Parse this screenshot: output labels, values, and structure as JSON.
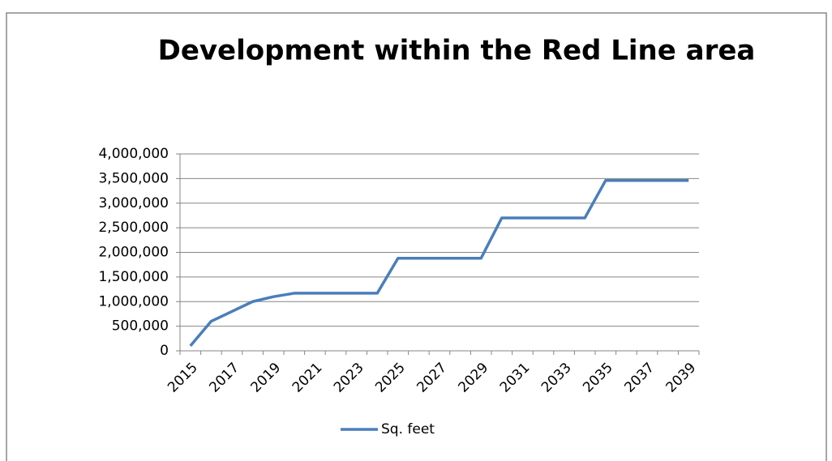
{
  "chart_data": {
    "type": "line",
    "title": "Development within the Red Line area",
    "categories": [
      "2015",
      null,
      "2017",
      null,
      "2019",
      null,
      "2021",
      null,
      "2023",
      null,
      "2025",
      null,
      "2027",
      null,
      "2029",
      null,
      "2031",
      null,
      "2033",
      null,
      "2035",
      null,
      "2037",
      null,
      "2039"
    ],
    "series": [
      {
        "name": "Sq. feet",
        "color": "#4a7ebb",
        "values": [
          100000,
          600000,
          800000,
          1000000,
          1100000,
          1170000,
          1170000,
          1170000,
          1170000,
          1170000,
          1880000,
          1880000,
          1880000,
          1880000,
          1880000,
          2700000,
          2700000,
          2700000,
          2700000,
          2700000,
          3460000,
          3460000,
          3460000,
          3460000,
          3460000
        ]
      }
    ],
    "ylim": [
      0,
      4000000
    ],
    "yticks": [
      0,
      {
        "value": 500000,
        "label": "500,000"
      },
      {
        "value": 1000000,
        "label": "1,000,000"
      },
      {
        "value": 1500000,
        "label": "1,500,000"
      },
      {
        "value": 2000000,
        "label": "2,000,000"
      },
      {
        "value": 2500000,
        "label": "2,500,000"
      },
      {
        "value": 3000000,
        "label": "3,000,000"
      },
      {
        "value": 3500000,
        "label": "3,500,000"
      },
      {
        "value": 4000000,
        "label": "4,000,000"
      }
    ],
    "grid": true,
    "legend": "bottom"
  }
}
